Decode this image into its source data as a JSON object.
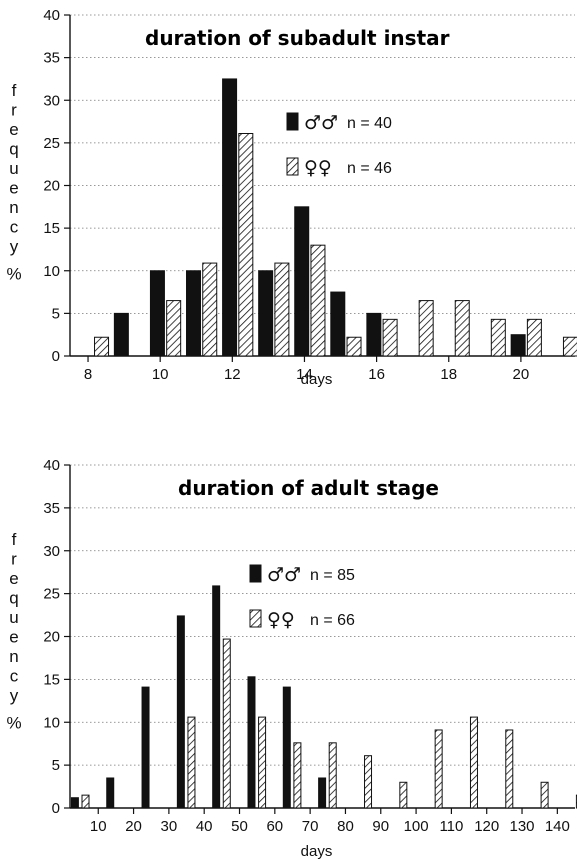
{
  "chart_data": [
    {
      "type": "bar",
      "title": "duration of subadult instar",
      "xlabel": "days",
      "ylabel": "frequency %",
      "ylabel_letters": [
        "f",
        "r",
        "e",
        "q",
        "u",
        "e",
        "n",
        "c",
        "y",
        "%"
      ],
      "ylim": [
        0,
        40
      ],
      "yticks": [
        0,
        5,
        10,
        15,
        20,
        25,
        30,
        35,
        40
      ],
      "xlim": [
        7.5,
        21.5
      ],
      "xticks": [
        8,
        10,
        12,
        14,
        16,
        18,
        20
      ],
      "categories": [
        8,
        9,
        10,
        11,
        12,
        13,
        14,
        15,
        16,
        17,
        18,
        19,
        20,
        21
      ],
      "grid": "horizontal dotted",
      "legend_position": "upper-right",
      "series": [
        {
          "name": "♂♂",
          "legend_text": "n = 40",
          "style": "solid",
          "color": "#111111",
          "values": [
            0,
            5,
            10,
            10,
            32.5,
            10,
            17.5,
            7.5,
            5,
            0,
            0,
            0,
            2.5,
            0
          ]
        },
        {
          "name": "♀♀",
          "legend_text": "n = 46",
          "style": "hatched",
          "color": "#111111",
          "values": [
            2.2,
            0,
            6.5,
            10.9,
            26.1,
            10.9,
            13.0,
            2.2,
            4.3,
            6.5,
            6.5,
            4.3,
            4.3,
            2.2
          ]
        }
      ]
    },
    {
      "type": "bar",
      "title": "duration of adult stage",
      "xlabel": "days",
      "ylabel": "frequency %",
      "ylabel_letters": [
        "f",
        "r",
        "e",
        "q",
        "u",
        "e",
        "n",
        "c",
        "y",
        "%"
      ],
      "ylim": [
        0,
        40
      ],
      "yticks": [
        0,
        5,
        10,
        15,
        20,
        25,
        30,
        35,
        40
      ],
      "xlim": [
        2,
        145
      ],
      "xticks": [
        10,
        20,
        30,
        40,
        50,
        60,
        70,
        80,
        90,
        100,
        110,
        120,
        130,
        140
      ],
      "categories": [
        5,
        15,
        25,
        35,
        45,
        55,
        65,
        75,
        85,
        95,
        105,
        115,
        125,
        135,
        145
      ],
      "grid": "horizontal dotted",
      "legend_position": "upper-center",
      "series": [
        {
          "name": "♂♂",
          "legend_text": "n = 85",
          "style": "solid",
          "color": "#111111",
          "values": [
            1.2,
            3.5,
            14.1,
            22.4,
            25.9,
            15.3,
            14.1,
            3.5,
            0,
            0,
            0,
            0,
            0,
            0,
            0
          ]
        },
        {
          "name": "♀♀",
          "legend_text": "n = 66",
          "style": "hatched",
          "color": "#111111",
          "values": [
            1.5,
            0,
            0,
            10.6,
            19.7,
            10.6,
            7.6,
            7.6,
            6.1,
            3.0,
            9.1,
            10.6,
            9.1,
            3.0,
            1.5
          ]
        }
      ]
    }
  ]
}
